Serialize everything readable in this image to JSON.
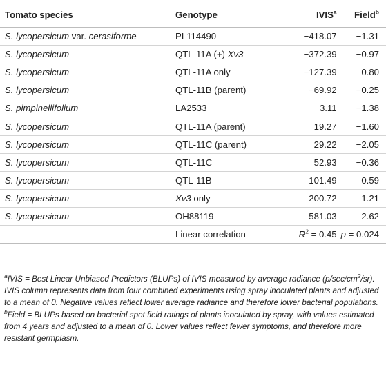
{
  "headers": {
    "species": "Tomato species",
    "genotype": "Genotype",
    "ivis": "IVIS",
    "ivis_sup": "a",
    "field": "Field",
    "field_sup": "b"
  },
  "rows": [
    {
      "species_prefix": "S. lycopersicum",
      "species_mid": " var. ",
      "species_suffix": "cerasiforme",
      "genotype_pre": "PI 114490",
      "genotype_it": "",
      "ivis": "−418.07",
      "field": "−1.31"
    },
    {
      "species_prefix": "S. lycopersicum",
      "species_mid": "",
      "species_suffix": "",
      "genotype_pre": "QTL-11A (+) ",
      "genotype_it": "Xv3",
      "ivis": "−372.39",
      "field": "−0.97"
    },
    {
      "species_prefix": "S. lycopersicum",
      "species_mid": "",
      "species_suffix": "",
      "genotype_pre": "QTL-11A only",
      "genotype_it": "",
      "ivis": "−127.39",
      "field": "0.80"
    },
    {
      "species_prefix": "S. lycopersicum",
      "species_mid": "",
      "species_suffix": "",
      "genotype_pre": "QTL-11B (parent)",
      "genotype_it": "",
      "ivis": "−69.92",
      "field": "−0.25"
    },
    {
      "species_prefix": "S. pimpinellifolium",
      "species_mid": "",
      "species_suffix": "",
      "genotype_pre": "LA2533",
      "genotype_it": "",
      "ivis": "3.11",
      "field": "−1.38"
    },
    {
      "species_prefix": "S. lycopersicum",
      "species_mid": "",
      "species_suffix": "",
      "genotype_pre": "QTL-11A (parent)",
      "genotype_it": "",
      "ivis": "19.27",
      "field": "−1.60"
    },
    {
      "species_prefix": "S. lycopersicum",
      "species_mid": "",
      "species_suffix": "",
      "genotype_pre": "QTL-11C (parent)",
      "genotype_it": "",
      "ivis": "29.22",
      "field": "−2.05"
    },
    {
      "species_prefix": "S. lycopersicum",
      "species_mid": "",
      "species_suffix": "",
      "genotype_pre": "QTL-11C",
      "genotype_it": "",
      "ivis": "52.93",
      "field": "−0.36"
    },
    {
      "species_prefix": "S. lycopersicum",
      "species_mid": "",
      "species_suffix": "",
      "genotype_pre": "QTL-11B",
      "genotype_it": "",
      "ivis": "101.49",
      "field": "0.59"
    },
    {
      "species_prefix": "S. lycopersicum",
      "species_mid": "",
      "species_suffix": "",
      "genotype_pre": "",
      "genotype_it": "Xv3",
      "genotype_post": " only",
      "ivis": "200.72",
      "field": "1.21"
    },
    {
      "species_prefix": "S. lycopersicum",
      "species_mid": "",
      "species_suffix": "",
      "genotype_pre": "OH88119",
      "genotype_it": "",
      "ivis": "581.03",
      "field": "2.62"
    }
  ],
  "correlation": {
    "label": "Linear correlation",
    "r_symbol": "R",
    "r_exp": "2",
    "r_value": " = 0.45",
    "p_symbol": "p",
    "p_value": " = 0.024"
  },
  "footnotes": {
    "a_mark": "a",
    "a_text_1": "IVIS = Best Linear Unbiased Predictors (BLUPs) of IVIS measured by average radiance (p/sec/cm",
    "a_exp": "2",
    "a_text_2": "/sr). IVIS column represents data from four combined experiments using spray inoculated plants and adjusted to a mean of 0. Negative values reflect lower average radiance and therefore lower bacterial populations.",
    "b_mark": "b",
    "b_text": "Field = BLUPs based on bacterial spot field ratings of plants inoculated by spray, with values estimated from 4 years and adjusted to a mean of 0. Lower values reflect fewer symptoms, and therefore more resistant germplasm."
  }
}
